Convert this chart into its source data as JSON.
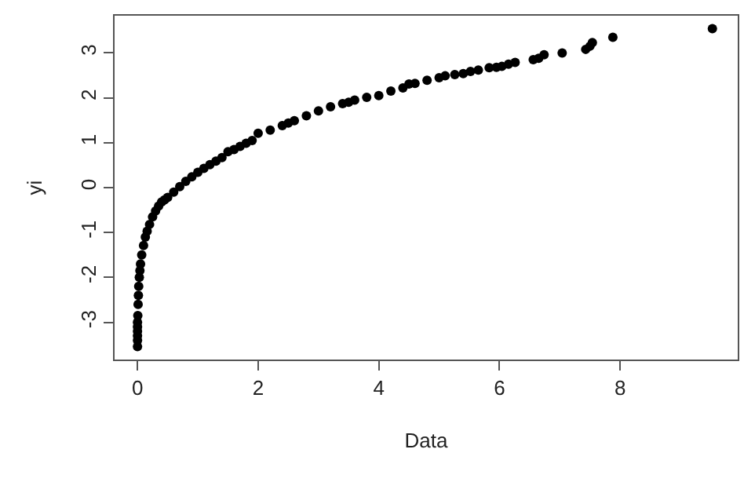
{
  "chart_data": {
    "type": "scatter",
    "xlabel": "Data",
    "ylabel": "yi",
    "xlim": [
      -0.38,
      9.95
    ],
    "ylim": [
      -3.83,
      3.83
    ],
    "xticks": [
      0,
      2,
      4,
      6,
      8
    ],
    "yticks": [
      -3,
      -2,
      -1,
      0,
      1,
      2,
      3
    ],
    "marker": "circle",
    "series": [
      {
        "color": "#000000",
        "x": [
          0,
          0,
          0,
          0,
          0,
          0,
          0.005,
          0.01,
          0.015,
          0.02,
          0.03,
          0.04,
          0.05,
          0.07,
          0.1,
          0.13,
          0.16,
          0.2,
          0.25,
          0.3,
          0.35,
          0.4,
          0.45,
          0.5,
          0.6,
          0.7,
          0.8,
          0.9,
          1.0,
          1.1,
          1.2,
          1.3,
          1.4,
          1.5,
          1.6,
          1.7,
          1.8,
          1.9,
          2.0,
          2.2,
          2.4,
          2.5,
          2.6,
          2.8,
          3.0,
          3.2,
          3.4,
          3.5,
          3.6,
          3.8,
          4.0,
          4.2,
          4.4,
          4.5,
          4.6,
          4.8,
          5.0,
          5.1,
          5.26,
          5.4,
          5.52,
          5.65,
          5.83,
          5.95,
          6.04,
          6.15,
          6.26,
          6.56,
          6.65,
          6.74,
          7.04,
          7.43,
          7.5,
          7.54,
          7.88,
          9.53
        ],
        "values": [
          -3.54,
          -3.4,
          -3.3,
          -3.2,
          -3.1,
          -3.0,
          -2.85,
          -2.6,
          -2.4,
          -2.2,
          -2.0,
          -1.85,
          -1.7,
          -1.5,
          -1.29,
          -1.1,
          -0.97,
          -0.82,
          -0.65,
          -0.52,
          -0.41,
          -0.32,
          -0.27,
          -0.22,
          -0.1,
          0.02,
          0.14,
          0.24,
          0.34,
          0.43,
          0.51,
          0.59,
          0.67,
          0.8,
          0.85,
          0.92,
          0.99,
          1.05,
          1.21,
          1.28,
          1.38,
          1.44,
          1.49,
          1.6,
          1.71,
          1.8,
          1.87,
          1.9,
          1.95,
          2.01,
          2.05,
          2.15,
          2.22,
          2.31,
          2.32,
          2.39,
          2.45,
          2.49,
          2.52,
          2.54,
          2.59,
          2.62,
          2.67,
          2.68,
          2.7,
          2.75,
          2.79,
          2.85,
          2.88,
          2.96,
          3.0,
          3.08,
          3.15,
          3.23,
          3.35,
          3.54
        ]
      }
    ]
  }
}
